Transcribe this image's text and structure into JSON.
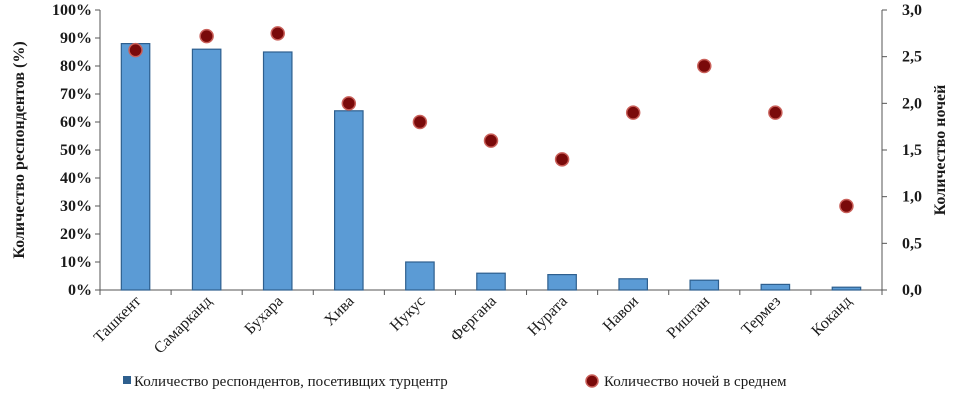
{
  "chart_data": {
    "type": "bar",
    "categories": [
      "Ташкент",
      "Самарканд",
      "Бухара",
      "Хива",
      "Нукус",
      "Фергана",
      "Нурата",
      "Навои",
      "Риштан",
      "Термез",
      "Коканд"
    ],
    "series": [
      {
        "name": "Количество респондентов, посетивщих турцентр",
        "type": "bar",
        "axis": "left",
        "values": [
          88,
          86,
          85,
          64,
          10,
          6,
          5.5,
          4,
          3.5,
          2,
          1
        ]
      },
      {
        "name": "Количество ночей в  среднем",
        "type": "scatter",
        "axis": "right",
        "values": [
          2.57,
          2.72,
          2.75,
          2.0,
          1.8,
          1.6,
          1.4,
          1.9,
          2.4,
          1.9,
          0.9
        ]
      }
    ],
    "ylabel": "Количество респондентов (%)",
    "ylabel_right": "Количество ночей",
    "ylim": [
      0,
      100
    ],
    "ylim_right": [
      0,
      3
    ],
    "yticks": [
      "0%",
      "10%",
      "20%",
      "30%",
      "40%",
      "50%",
      "60%",
      "70%",
      "80%",
      "90%",
      "100%"
    ],
    "yticks_right": [
      "0,0",
      "0,5",
      "1,0",
      "1,5",
      "2,0",
      "2,5",
      "3,0"
    ],
    "grid": false,
    "legend_position": "bottom",
    "colors": {
      "bar": "#5b9bd5",
      "bar_edge": "#2e5f8e",
      "marker": "#7a0a0a",
      "marker_edge": "#c9605a"
    }
  }
}
